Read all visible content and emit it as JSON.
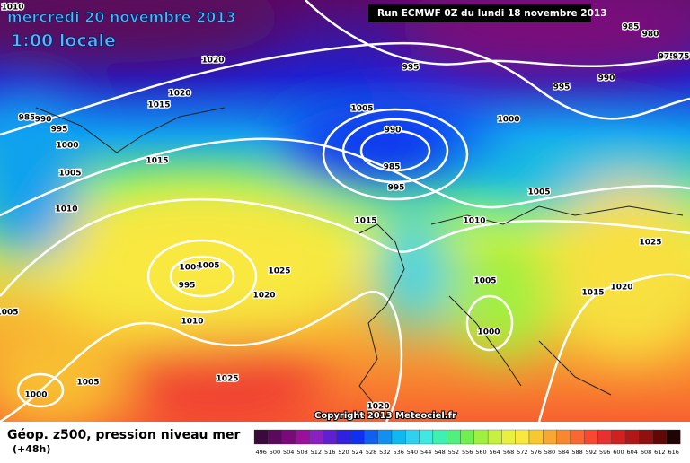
{
  "header": {
    "date": "mercredi 20 novembre 2013",
    "time": "1:00 locale",
    "run": "Run ECMWF 0Z du lundi 18 novembre 2013"
  },
  "footer": {
    "title": "Géop. z500, pression niveau mer",
    "lead": "(+48h)",
    "copyright": "Copyright 2013 Meteociel.fr"
  },
  "legend": {
    "values": [
      496,
      500,
      504,
      508,
      512,
      516,
      520,
      524,
      528,
      532,
      536,
      540,
      544,
      548,
      552,
      556,
      560,
      564,
      568,
      572,
      576,
      580,
      584,
      588,
      592,
      596,
      600,
      604,
      608,
      612,
      616
    ],
    "colors": [
      "#3a0a3a",
      "#5a0a5a",
      "#7a0a7a",
      "#9a109a",
      "#8a20c0",
      "#6020d0",
      "#3020e0",
      "#1030f0",
      "#1060f0",
      "#1090f0",
      "#10b8f0",
      "#30d0f0",
      "#40e8e0",
      "#40f0b0",
      "#50f080",
      "#70f050",
      "#a0f040",
      "#c8f040",
      "#e8f040",
      "#f8e840",
      "#f8c830",
      "#f8a830",
      "#f88830",
      "#f86830",
      "#f84830",
      "#e83030",
      "#d02020",
      "#b01818",
      "#901010",
      "#600808",
      "#200404"
    ]
  },
  "isobar_labels": [
    "1010",
    "1020",
    "1020",
    "1015",
    "985",
    "990",
    "995",
    "1000",
    "1015",
    "1005",
    "1010",
    "1005",
    "990",
    "985",
    "995",
    "995",
    "995",
    "990",
    "985",
    "980",
    "975",
    "975",
    "1000",
    "1005",
    "1010",
    "1015",
    "1025",
    "1000",
    "1005",
    "995",
    "1025",
    "1020",
    "1010",
    "1005",
    "1015",
    "1020",
    "1000",
    "1005",
    "1000",
    "1025",
    "1020",
    "1005"
  ]
}
